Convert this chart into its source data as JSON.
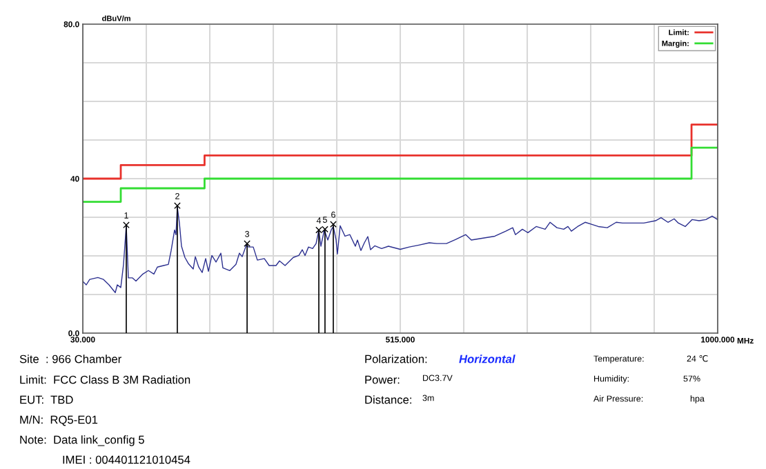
{
  "chart_data": {
    "type": "line",
    "xlabel": "MHz",
    "ylabel": "dBuV/m",
    "xlim": [
      30,
      1000
    ],
    "ylim": [
      0,
      80
    ],
    "xticks": [
      {
        "value": 30,
        "label": "30.000"
      },
      {
        "value": 127,
        "label": null
      },
      {
        "value": 224,
        "label": null
      },
      {
        "value": 321,
        "label": null
      },
      {
        "value": 418,
        "label": null
      },
      {
        "value": 515,
        "label": "515.000"
      },
      {
        "value": 612,
        "label": null
      },
      {
        "value": 709,
        "label": null
      },
      {
        "value": 806,
        "label": null
      },
      {
        "value": 903,
        "label": null
      },
      {
        "value": 1000,
        "label": "1000.000"
      }
    ],
    "yticks": [
      {
        "value": 0,
        "label": "0.0"
      },
      {
        "value": 10,
        "label": null
      },
      {
        "value": 20,
        "label": null
      },
      {
        "value": 30,
        "label": null
      },
      {
        "value": 40,
        "label": "40"
      },
      {
        "value": 50,
        "label": null
      },
      {
        "value": 60,
        "label": null
      },
      {
        "value": 70,
        "label": null
      },
      {
        "value": 80,
        "label": "80.0"
      }
    ],
    "grid": true,
    "legend": "top right",
    "series": [
      {
        "color": "#2b2f8f",
        "x": [
          30,
          35.3,
          40.5,
          53,
          61.6,
          70,
          79.6,
          82.7,
          88,
          92.2,
          96.4,
          99.6,
          105.9,
          111.2,
          121.7,
          130.2,
          138.6,
          143.9,
          153.4,
          160.7,
          165,
          170.2,
          172.3,
          174.4,
          177.6,
          180.8,
          186,
          191.3,
          198.7,
          201.9,
          207.1,
          212.4,
          217.7,
          221.9,
          227.2,
          233.5,
          240.9,
          244,
          254.6,
          264,
          269.3,
          273.5,
          279.9,
          283,
          290.4,
          296.7,
          307.3,
          314.7,
          325.2,
          330.5,
          339,
          351.6,
          360,
          365.3,
          369.5,
          374.8,
          381.1,
          386.4,
          390.6,
          393.7,
          399,
          404.3,
          409.5,
          412.7,
          416.9,
          419,
          423.2,
          430.6,
          438,
          446.4,
          449.6,
          454.9,
          460.2,
          465.4,
          469.6,
          476,
          486.5,
          497,
          515,
          528.7,
          543.4,
          559.3,
          570.9,
          585.6,
          599.3,
          615.1,
          623.6,
          641.5,
          659.4,
          676.3,
          686.8,
          691,
          701.6,
          710,
          722.7,
          736.4,
          743.8,
          754.3,
          764.8,
          771.2,
          776.4,
          786,
          797.5,
          807,
          817.6,
          831.3,
          845,
          854.5,
          873.4,
          887.1,
          905,
          913.5,
          924,
          933.5,
          939.9,
          950.4,
          961,
          971.5,
          982,
          991.5,
          1000
        ],
        "values": [
          13.4,
          12.5,
          13.9,
          14.4,
          13.9,
          12.5,
          10.5,
          12.5,
          11.8,
          17.8,
          27.8,
          14.3,
          14.3,
          13.5,
          15.3,
          16.2,
          15.3,
          17.1,
          17.5,
          17.8,
          21.4,
          26.7,
          25.5,
          32.6,
          28.5,
          22.5,
          19.6,
          18.0,
          16.6,
          19.8,
          17.1,
          15.7,
          19.3,
          16.0,
          20.1,
          18.4,
          20.7,
          16.9,
          16.2,
          17.8,
          20.7,
          19.8,
          22.8,
          22.3,
          22.3,
          18.9,
          19.3,
          17.5,
          17.5,
          18.7,
          17.5,
          19.6,
          20.1,
          21.6,
          20.1,
          22.3,
          21.9,
          23.2,
          26.7,
          22.5,
          26.7,
          24.1,
          26.7,
          27.6,
          24.2,
          20.5,
          27.8,
          25.1,
          25.5,
          22.5,
          24.1,
          21.4,
          23.4,
          25.0,
          21.6,
          22.6,
          21.9,
          22.5,
          21.7,
          22.3,
          22.8,
          23.4,
          23.2,
          23.2,
          24.2,
          25.5,
          24.1,
          24.6,
          25.1,
          26.4,
          27.3,
          25.5,
          26.9,
          26.0,
          27.6,
          26.9,
          28.7,
          27.3,
          26.9,
          27.6,
          26.4,
          27.6,
          28.7,
          28.2,
          27.6,
          27.3,
          28.7,
          28.5,
          28.5,
          28.5,
          29.1,
          29.9,
          28.7,
          29.6,
          28.5,
          27.6,
          29.4,
          29.1,
          29.4,
          30.3,
          29.4
        ]
      },
      {
        "type": "step",
        "name": "Limit:",
        "color": "#e8312b",
        "x": [
          30,
          88,
          216,
          960,
          1000
        ],
        "values": [
          40,
          43.5,
          46,
          54,
          54
        ]
      },
      {
        "type": "step",
        "name": "Margin:",
        "color": "#33dd33",
        "x": [
          30,
          88,
          216,
          960,
          1000
        ],
        "values": [
          34,
          37.5,
          40,
          48,
          48
        ]
      },
      {
        "type": "lollipop",
        "color": "#000000",
        "marker": "cross",
        "x": [
          96.4,
          174.4,
          281,
          390.6,
          400,
          412.7
        ],
        "values": [
          28.0,
          33.0,
          23.2,
          26.7,
          26.9,
          28.2
        ]
      }
    ],
    "annotations": [
      {
        "text": "1",
        "x": 96.4,
        "y": 28.0
      },
      {
        "text": "2",
        "x": 174.4,
        "y": 33.0
      },
      {
        "text": "3",
        "x": 281,
        "y": 23.2
      },
      {
        "text": "4",
        "x": 390.6,
        "y": 26.7
      },
      {
        "text": "5",
        "x": 400,
        "y": 26.9
      },
      {
        "text": "6",
        "x": 412.7,
        "y": 28.2
      },
      "Site  : 966 Chamber",
      "Limit:  FCC Class B 3M Radiation",
      "EUT:  TBD",
      "M/N:  RQ5-E01",
      "Note:  Data link_config 5",
      "IMEI : 004401121010454",
      "Polarization:",
      "Horizontal",
      "Power:",
      "DC3.7V",
      "Distance:",
      "3m",
      "Temperature:",
      "24 ℃",
      "Humidity:",
      "57%",
      "Air Pressure:",
      "hpa"
    ]
  }
}
